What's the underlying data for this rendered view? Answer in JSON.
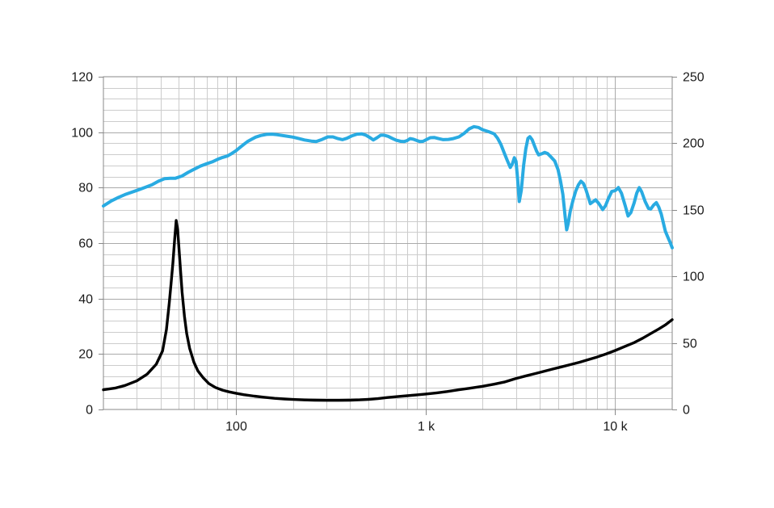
{
  "page": {
    "background": "#ffffff"
  },
  "chart_data": {
    "type": "line",
    "title": "",
    "legend": false,
    "grid": true,
    "x_axis": {
      "scale": "log",
      "min": 20,
      "max": 20000,
      "tick_values": [
        100,
        1000,
        10000
      ],
      "tick_labels": [
        "100",
        "1 k",
        "10 k"
      ]
    },
    "y_left": {
      "min": 0,
      "max": 120,
      "major_step": 20,
      "minor_step": 4,
      "tick_values": [
        0,
        20,
        40,
        60,
        80,
        100,
        120
      ],
      "tick_labels": [
        "0",
        "20",
        "40",
        "60",
        "80",
        "100",
        "120"
      ]
    },
    "y_right": {
      "min": 0,
      "max": 250,
      "major_step": 50,
      "tick_values": [
        0,
        50,
        100,
        150,
        200,
        250
      ],
      "tick_labels": [
        "0",
        "50",
        "100",
        "150",
        "200",
        "250"
      ]
    },
    "colors": {
      "response": "#29abe2",
      "impedance": "#000000",
      "grid_minor": "#cccccc",
      "grid_major": "#aaaaaa",
      "border": "#888888",
      "tick": "#888888",
      "label": "#1a1a1a"
    },
    "series": [
      {
        "name": "spl-response",
        "axis": "left",
        "color": "#29abe2",
        "width": 4,
        "points": [
          [
            20,
            73.4
          ],
          [
            22,
            75.2
          ],
          [
            24,
            76.5
          ],
          [
            26,
            77.5
          ],
          [
            28,
            78.3
          ],
          [
            30,
            79
          ],
          [
            33,
            80
          ],
          [
            36,
            81
          ],
          [
            39,
            82.3
          ],
          [
            42,
            83.2
          ],
          [
            45,
            83.4
          ],
          [
            48,
            83.4
          ],
          [
            52,
            84.2
          ],
          [
            56,
            85.5
          ],
          [
            60,
            86.6
          ],
          [
            65,
            87.8
          ],
          [
            70,
            88.6
          ],
          [
            75,
            89.3
          ],
          [
            80,
            90.2
          ],
          [
            85,
            90.9
          ],
          [
            90,
            91.4
          ],
          [
            95,
            92.3
          ],
          [
            100,
            93.3
          ],
          [
            105,
            94.5
          ],
          [
            110,
            95.6
          ],
          [
            115,
            96.6
          ],
          [
            120,
            97.3
          ],
          [
            127,
            98.2
          ],
          [
            135,
            98.8
          ],
          [
            145,
            99.2
          ],
          [
            155,
            99.3
          ],
          [
            165,
            99.1
          ],
          [
            180,
            98.7
          ],
          [
            200,
            98.2
          ],
          [
            215,
            97.7
          ],
          [
            230,
            97.2
          ],
          [
            250,
            96.8
          ],
          [
            265,
            96.6
          ],
          [
            285,
            97.4
          ],
          [
            305,
            98.3
          ],
          [
            325,
            98.3
          ],
          [
            345,
            97.7
          ],
          [
            365,
            97.3
          ],
          [
            385,
            97.8
          ],
          [
            410,
            98.7
          ],
          [
            435,
            99.3
          ],
          [
            460,
            99.4
          ],
          [
            485,
            98.9
          ],
          [
            510,
            98
          ],
          [
            530,
            97.2
          ],
          [
            555,
            98
          ],
          [
            580,
            98.9
          ],
          [
            605,
            98.9
          ],
          [
            635,
            98.5
          ],
          [
            665,
            97.8
          ],
          [
            700,
            97.1
          ],
          [
            740,
            96.7
          ],
          [
            770,
            96.6
          ],
          [
            800,
            97
          ],
          [
            830,
            97.7
          ],
          [
            860,
            97.5
          ],
          [
            900,
            97
          ],
          [
            935,
            96.6
          ],
          [
            970,
            96.7
          ],
          [
            1010,
            97.3
          ],
          [
            1060,
            98
          ],
          [
            1110,
            98.1
          ],
          [
            1170,
            97.7
          ],
          [
            1240,
            97.3
          ],
          [
            1320,
            97.4
          ],
          [
            1400,
            97.7
          ],
          [
            1500,
            98.3
          ],
          [
            1600,
            99.6
          ],
          [
            1700,
            101.2
          ],
          [
            1800,
            102
          ],
          [
            1900,
            101.7
          ],
          [
            2000,
            100.9
          ],
          [
            2150,
            100.2
          ],
          [
            2300,
            99.4
          ],
          [
            2400,
            97.8
          ],
          [
            2500,
            95.5
          ],
          [
            2600,
            92.5
          ],
          [
            2700,
            89.8
          ],
          [
            2800,
            87.3
          ],
          [
            2870,
            88.5
          ],
          [
            2940,
            90.8
          ],
          [
            3000,
            89.5
          ],
          [
            3060,
            83
          ],
          [
            3120,
            75
          ],
          [
            3200,
            79
          ],
          [
            3290,
            88
          ],
          [
            3380,
            94
          ],
          [
            3470,
            97.8
          ],
          [
            3550,
            98.4
          ],
          [
            3650,
            97.3
          ],
          [
            3750,
            95.2
          ],
          [
            3850,
            93.2
          ],
          [
            3950,
            91.8
          ],
          [
            4100,
            92.2
          ],
          [
            4250,
            92.7
          ],
          [
            4400,
            92.3
          ],
          [
            4600,
            91
          ],
          [
            4800,
            89.6
          ],
          [
            5000,
            86.5
          ],
          [
            5150,
            82.5
          ],
          [
            5300,
            77.5
          ],
          [
            5450,
            69.5
          ],
          [
            5550,
            64.8
          ],
          [
            5650,
            67
          ],
          [
            5800,
            71.5
          ],
          [
            6000,
            75.5
          ],
          [
            6200,
            78.8
          ],
          [
            6400,
            81
          ],
          [
            6600,
            82.3
          ],
          [
            6800,
            81.5
          ],
          [
            7000,
            79.5
          ],
          [
            7200,
            76.8
          ],
          [
            7400,
            74.2
          ],
          [
            7600,
            74.8
          ],
          [
            7900,
            75.6
          ],
          [
            8200,
            74.3
          ],
          [
            8600,
            72.1
          ],
          [
            8900,
            73.5
          ],
          [
            9200,
            76
          ],
          [
            9600,
            78.6
          ],
          [
            10000,
            78.9
          ],
          [
            10400,
            80
          ],
          [
            10800,
            78
          ],
          [
            11300,
            73.5
          ],
          [
            11700,
            69.8
          ],
          [
            12100,
            71
          ],
          [
            12600,
            74.5
          ],
          [
            13000,
            78
          ],
          [
            13400,
            80
          ],
          [
            13800,
            78.5
          ],
          [
            14400,
            75
          ],
          [
            15000,
            72.5
          ],
          [
            15400,
            72.3
          ],
          [
            16000,
            73.8
          ],
          [
            16500,
            74.6
          ],
          [
            17000,
            73
          ],
          [
            17500,
            70.5
          ],
          [
            18000,
            67
          ],
          [
            18400,
            64.3
          ],
          [
            19000,
            62
          ],
          [
            19500,
            60.3
          ],
          [
            20000,
            58.3
          ]
        ]
      },
      {
        "name": "impedance",
        "axis": "right",
        "color": "#000000",
        "width": 3.4,
        "points": [
          [
            20,
            14.8
          ],
          [
            23,
            16
          ],
          [
            26,
            18
          ],
          [
            30,
            21.5
          ],
          [
            34,
            26.5
          ],
          [
            38,
            34
          ],
          [
            41,
            44
          ],
          [
            43,
            60
          ],
          [
            44.5,
            80
          ],
          [
            45.5,
            95
          ],
          [
            46.5,
            110
          ],
          [
            47.5,
            128
          ],
          [
            48.4,
            142
          ],
          [
            49.3,
            135
          ],
          [
            50,
            122
          ],
          [
            51,
            105
          ],
          [
            52,
            88
          ],
          [
            53.5,
            70
          ],
          [
            55,
            57
          ],
          [
            57,
            46
          ],
          [
            60,
            35.5
          ],
          [
            63,
            29
          ],
          [
            67,
            24
          ],
          [
            72,
            19.5
          ],
          [
            78,
            16.5
          ],
          [
            85,
            14.5
          ],
          [
            92,
            13.2
          ],
          [
            100,
            12.2
          ],
          [
            110,
            11.1
          ],
          [
            125,
            10
          ],
          [
            140,
            9.2
          ],
          [
            160,
            8.4
          ],
          [
            180,
            7.9
          ],
          [
            200,
            7.5
          ],
          [
            230,
            7.15
          ],
          [
            260,
            6.95
          ],
          [
            300,
            6.85
          ],
          [
            350,
            6.85
          ],
          [
            400,
            6.95
          ],
          [
            450,
            7.2
          ],
          [
            500,
            7.6
          ],
          [
            560,
            8.15
          ],
          [
            630,
            9
          ],
          [
            700,
            9.6
          ],
          [
            800,
            10.3
          ],
          [
            900,
            11
          ],
          [
            1000,
            11.6
          ],
          [
            1150,
            12.5
          ],
          [
            1300,
            13.5
          ],
          [
            1500,
            14.8
          ],
          [
            1700,
            15.9
          ],
          [
            2000,
            17.4
          ],
          [
            2300,
            19
          ],
          [
            2600,
            20.6
          ],
          [
            3000,
            23.3
          ],
          [
            3400,
            25.3
          ],
          [
            3800,
            27
          ],
          [
            4200,
            28.6
          ],
          [
            4700,
            30.4
          ],
          [
            5200,
            32
          ],
          [
            5800,
            33.7
          ],
          [
            6500,
            35.5
          ],
          [
            7200,
            37.4
          ],
          [
            8000,
            39.3
          ],
          [
            9000,
            41.8
          ],
          [
            10000,
            44.3
          ],
          [
            11200,
            47.2
          ],
          [
            12500,
            50
          ],
          [
            14000,
            53.6
          ],
          [
            15500,
            57.2
          ],
          [
            17000,
            60.5
          ],
          [
            18500,
            63.8
          ],
          [
            20000,
            67.5
          ]
        ]
      }
    ]
  }
}
